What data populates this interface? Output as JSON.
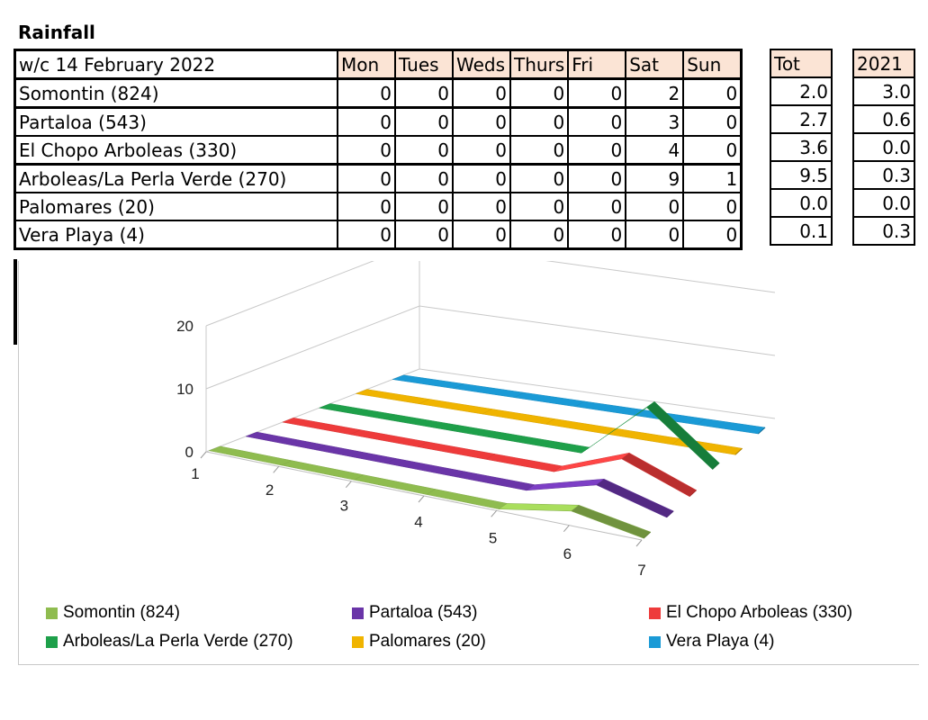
{
  "title": "Rainfall",
  "table": {
    "week_label": "w/c 14 February 2022",
    "days": [
      "Mon",
      "Tues",
      "Weds",
      "Thurs",
      "Fri",
      "Sat",
      "Sun"
    ],
    "tot_header": "Tot",
    "prev_header": "2021",
    "rows": [
      {
        "name": "Somontin (824)",
        "values": [
          "0",
          "0",
          "0",
          "0",
          "0",
          "2",
          "0"
        ],
        "tot": "2.0",
        "prev": "3.0"
      },
      {
        "name": "Partaloa (543)",
        "values": [
          "0",
          "0",
          "0",
          "0",
          "0",
          "3",
          "0"
        ],
        "tot": "2.7",
        "prev": "0.6"
      },
      {
        "name": "El Chopo Arboleas (330)",
        "values": [
          "0",
          "0",
          "0",
          "0",
          "0",
          "4",
          "0"
        ],
        "tot": "3.6",
        "prev": "0.0"
      },
      {
        "name": "Arboleas/La Perla Verde (270)",
        "values": [
          "0",
          "0",
          "0",
          "0",
          "0",
          "9",
          "1"
        ],
        "tot": "9.5",
        "prev": "0.3"
      },
      {
        "name": "Palomares (20)",
        "values": [
          "0",
          "0",
          "0",
          "0",
          "0",
          "0",
          "0"
        ],
        "tot": "0.0",
        "prev": "0.0"
      },
      {
        "name": "Vera Playa (4)",
        "values": [
          "0",
          "0",
          "0",
          "0",
          "0",
          "0",
          "0"
        ],
        "tot": "0.1",
        "prev": "0.3"
      }
    ]
  },
  "chart_data": {
    "type": "line",
    "style": "3d-ribbon",
    "x": [
      1,
      2,
      3,
      4,
      5,
      6,
      7
    ],
    "ylim": [
      0,
      20
    ],
    "yticks": [
      "0",
      "10",
      "20"
    ],
    "xticks": [
      "1",
      "2",
      "3",
      "4",
      "5",
      "6",
      "7"
    ],
    "series": [
      {
        "name": "Somontin (824)",
        "values": [
          0,
          0,
          0,
          0,
          0,
          2,
          0
        ],
        "color": "#8fbc4f"
      },
      {
        "name": "Partaloa (543)",
        "values": [
          0,
          0,
          0,
          0,
          0,
          3,
          0
        ],
        "color": "#6a35a8"
      },
      {
        "name": "El Chopo Arboleas (330)",
        "values": [
          0,
          0,
          0,
          0,
          0,
          4,
          0
        ],
        "color": "#ee3b3b"
      },
      {
        "name": "Arboleas/La Perla Verde (270)",
        "values": [
          0,
          0,
          0,
          0,
          0,
          9,
          1
        ],
        "color": "#1ea04a"
      },
      {
        "name": "Palomares (20)",
        "values": [
          0,
          0,
          0,
          0,
          0,
          0,
          0
        ],
        "color": "#f0b400"
      },
      {
        "name": "Vera Playa (4)",
        "values": [
          0,
          0,
          0,
          0,
          0,
          0,
          0
        ],
        "color": "#1a9ad6"
      }
    ],
    "legend": "bottom"
  }
}
